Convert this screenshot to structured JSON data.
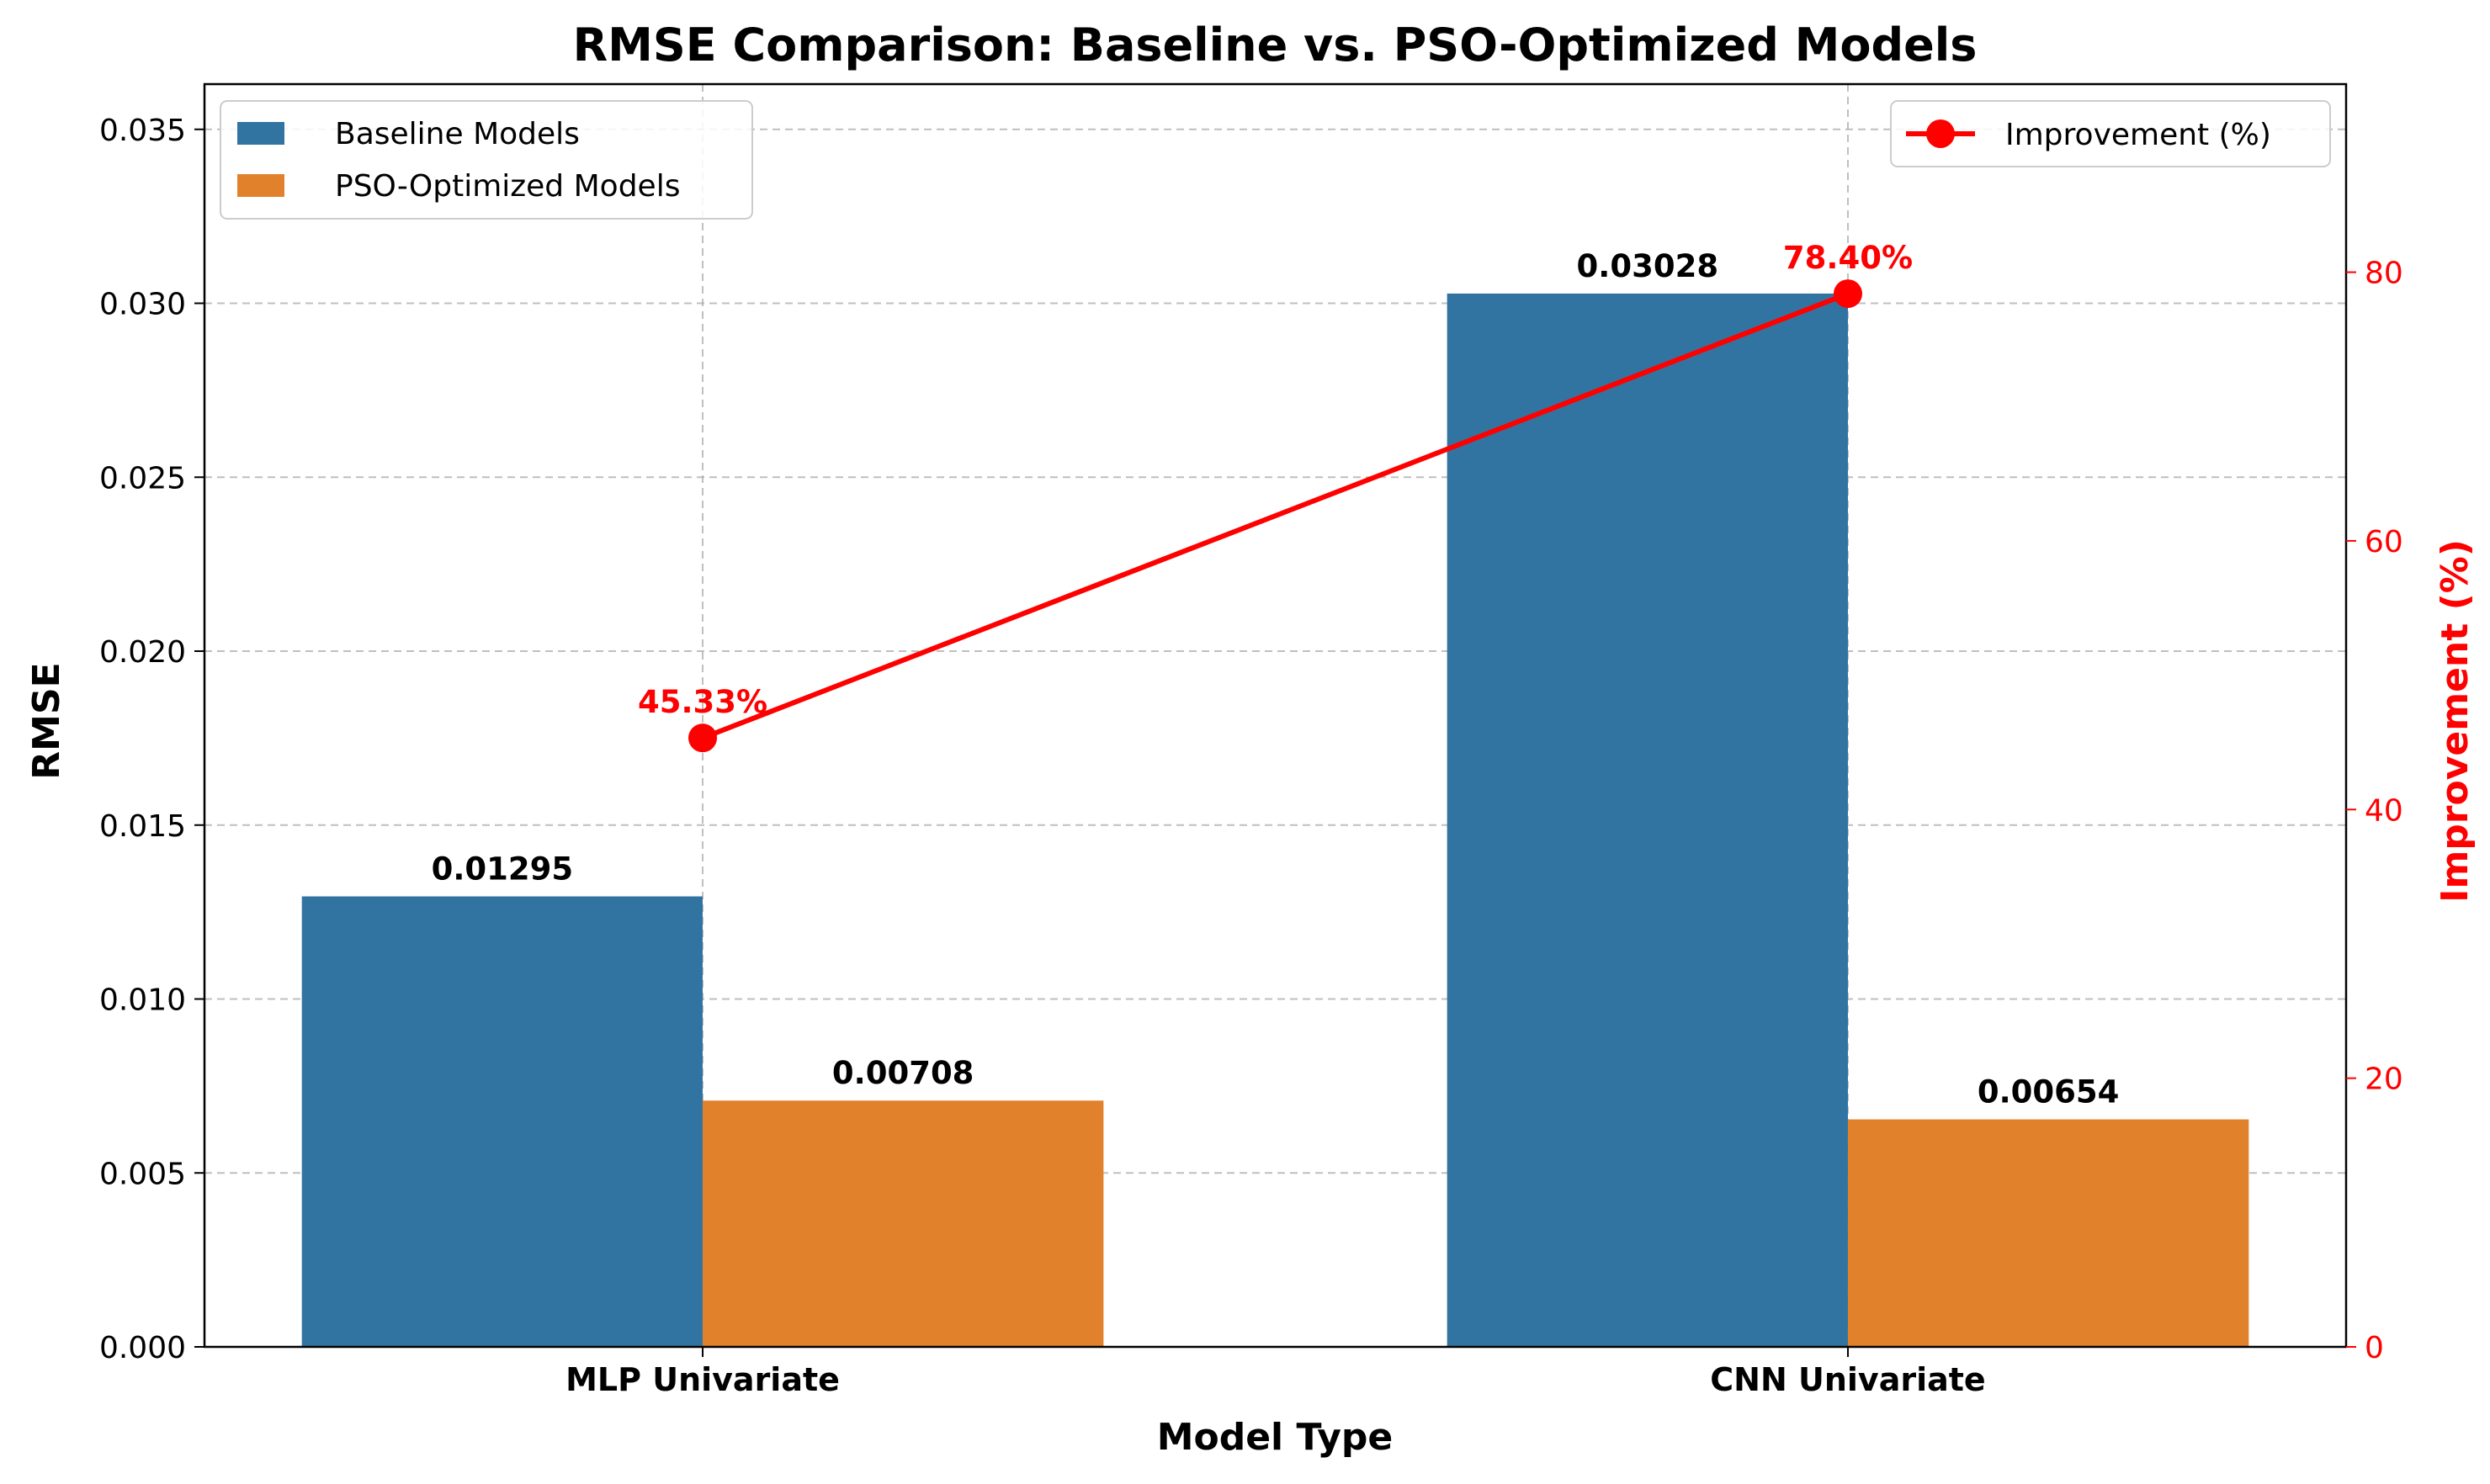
{
  "chart_data": {
    "type": "bar",
    "title": "RMSE Comparison: Baseline vs. PSO-Optimized Models",
    "xlabel": "Model Type",
    "ylabel": "RMSE",
    "y2label": "Improvement (%)",
    "categories": [
      "MLP Univariate",
      "CNN Univariate"
    ],
    "series": [
      {
        "name": "Baseline Models",
        "type": "bar",
        "axis": "left",
        "color": "#3274a1",
        "values": [
          0.01295,
          0.03028
        ],
        "labels": [
          "0.01295",
          "0.03028"
        ]
      },
      {
        "name": "PSO-Optimized Models",
        "type": "bar",
        "axis": "left",
        "color": "#e1812c",
        "values": [
          0.00708,
          0.00654
        ],
        "labels": [
          "0.00708",
          "0.00654"
        ]
      },
      {
        "name": "Improvement (%)",
        "type": "line",
        "axis": "right",
        "color": "#ff0000",
        "values": [
          45.33,
          78.4
        ],
        "labels": [
          "45.33%",
          "78.40%"
        ]
      }
    ],
    "ylim": [
      0,
      0.0363
    ],
    "y2lim": [
      0,
      94
    ],
    "yticks": [
      0.0,
      0.005,
      0.01,
      0.015,
      0.02,
      0.025,
      0.03,
      0.035
    ],
    "ytick_labels": [
      "0.000",
      "0.005",
      "0.010",
      "0.015",
      "0.020",
      "0.025",
      "0.030",
      "0.035"
    ],
    "y2ticks": [
      0,
      20,
      40,
      60,
      80
    ],
    "y2tick_labels": [
      "0",
      "20",
      "40",
      "60",
      "80"
    ],
    "grid": true,
    "legend_left_position": "top-left",
    "legend_right_position": "top-right",
    "colors": {
      "axis_right": "#ff0000",
      "grid": "#b0b0b0"
    }
  }
}
